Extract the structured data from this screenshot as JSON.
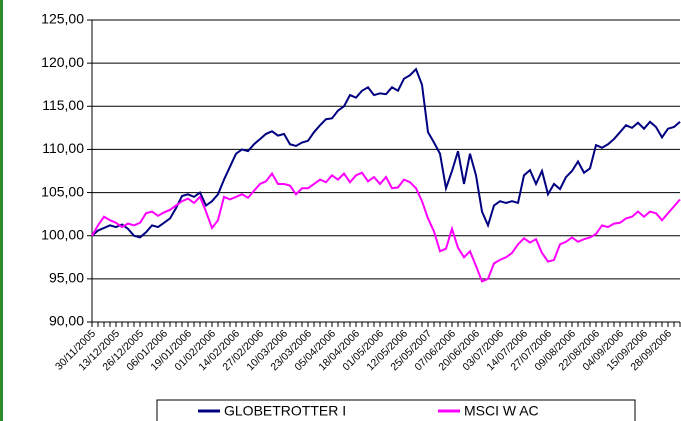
{
  "chart_data": {
    "type": "line",
    "categories": [
      "30/11/2005",
      null,
      null,
      null,
      "13/12/2005",
      null,
      null,
      null,
      "26/12/2005",
      null,
      null,
      null,
      "06/01/2006",
      null,
      null,
      null,
      "19/01/2006",
      null,
      null,
      null,
      "01/02/2006",
      null,
      null,
      null,
      "14/02/2006",
      null,
      null,
      null,
      "27/02/2006",
      null,
      null,
      null,
      "10/03/2006",
      null,
      null,
      null,
      "23/03/2006",
      null,
      null,
      null,
      "05/04/2006",
      null,
      null,
      null,
      "18/04/2006",
      null,
      null,
      null,
      "01/05/2006",
      null,
      null,
      null,
      "12/05/2006",
      null,
      null,
      null,
      "25/05/2007",
      null,
      null,
      null,
      "07/06/2006",
      null,
      null,
      null,
      "20/06/2006",
      null,
      null,
      null,
      "03/07/2006",
      null,
      null,
      null,
      "14/07/2006",
      null,
      null,
      null,
      "27/07/2006",
      null,
      null,
      null,
      "09/08/2006",
      null,
      null,
      null,
      "22/08/2006",
      null,
      null,
      null,
      "04/09/2006",
      null,
      null,
      null,
      "15/09/2006",
      null,
      null,
      null,
      "28/09/2006",
      null,
      null
    ],
    "series": [
      {
        "name": "GLOBETROTTER I",
        "color": "#000080",
        "values": [
          100.0,
          100.6,
          100.9,
          101.2,
          101.0,
          101.3,
          100.8,
          100.0,
          99.8,
          100.4,
          101.2,
          101.0,
          101.5,
          102.0,
          103.2,
          104.6,
          104.8,
          104.5,
          105.0,
          103.5,
          104.0,
          104.8,
          106.5,
          108.0,
          109.5,
          110.0,
          109.8,
          110.6,
          111.2,
          111.8,
          112.1,
          111.6,
          111.8,
          110.6,
          110.4,
          110.8,
          111.0,
          112.0,
          112.8,
          113.5,
          113.6,
          114.5,
          115.0,
          116.3,
          116.0,
          116.8,
          117.2,
          116.3,
          116.5,
          116.4,
          117.2,
          116.8,
          118.2,
          118.6,
          119.3,
          117.5,
          112.0,
          110.8,
          109.5,
          105.5,
          107.5,
          109.8,
          106.0,
          109.5,
          107.0,
          102.8,
          101.2,
          103.5,
          104.0,
          103.8,
          104.0,
          103.8,
          107.0,
          107.6,
          106.0,
          107.5,
          104.8,
          106.0,
          105.4,
          106.8,
          107.5,
          108.6,
          107.3,
          107.8,
          110.5,
          110.2,
          110.6,
          111.2,
          112.0,
          112.8,
          112.5,
          113.1,
          112.4,
          113.2,
          112.6,
          111.4,
          112.4,
          112.6,
          113.2
        ]
      },
      {
        "name": "MSCI W AC",
        "color": "#ff00ff",
        "values": [
          100.0,
          101.2,
          102.2,
          101.8,
          101.5,
          101.0,
          101.4,
          101.2,
          101.5,
          102.6,
          102.8,
          102.3,
          102.7,
          103.0,
          103.5,
          104.0,
          104.3,
          103.8,
          104.5,
          102.8,
          100.9,
          101.8,
          104.5,
          104.2,
          104.5,
          104.8,
          104.4,
          105.2,
          106.0,
          106.3,
          107.2,
          106.0,
          106.0,
          105.8,
          104.8,
          105.5,
          105.5,
          106.0,
          106.5,
          106.2,
          107.0,
          106.5,
          107.2,
          106.2,
          107.0,
          107.3,
          106.3,
          106.8,
          106.0,
          106.8,
          105.5,
          105.6,
          106.5,
          106.2,
          105.5,
          104.0,
          102.0,
          100.5,
          98.2,
          98.5,
          100.8,
          98.6,
          97.5,
          98.2,
          96.5,
          94.7,
          95.0,
          96.8,
          97.2,
          97.5,
          98.0,
          99.0,
          99.7,
          99.2,
          99.6,
          98.0,
          97.0,
          97.2,
          99.0,
          99.3,
          99.8,
          99.3,
          99.6,
          99.8,
          100.2,
          101.2,
          101.0,
          101.4,
          101.5,
          102.0,
          102.2,
          102.8,
          102.2,
          102.8,
          102.6,
          101.8,
          102.6,
          103.4,
          104.2
        ]
      }
    ],
    "ylim": [
      90,
      125
    ],
    "yticks": [
      {
        "value": 90,
        "label": "90,00"
      },
      {
        "value": 95,
        "label": "95,00"
      },
      {
        "value": 100,
        "label": "100,00"
      },
      {
        "value": 105,
        "label": "105,00"
      },
      {
        "value": 110,
        "label": "110,00"
      },
      {
        "value": 115,
        "label": "115,00"
      },
      {
        "value": 120,
        "label": "120,00"
      },
      {
        "value": 125,
        "label": "125,00"
      }
    ],
    "grid": true,
    "legend": "bottom"
  }
}
